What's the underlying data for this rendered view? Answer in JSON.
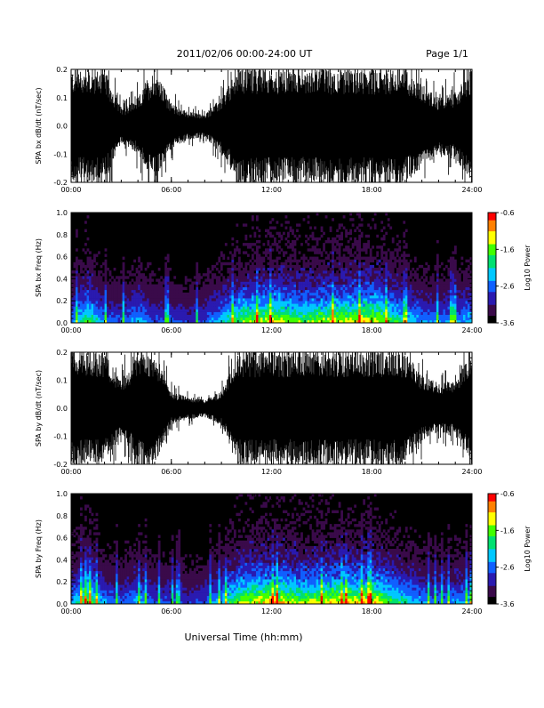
{
  "header": {
    "title": "2011/02/06  00:00-24:00 UT",
    "page": "Page 1/1"
  },
  "footer": {
    "xlabel": "Universal Time (hh:mm)"
  },
  "colors": {
    "trace": "#000000",
    "spectrogram_background": "#000000",
    "colormap": [
      "#000000",
      "#3a0a4a",
      "#2a1ab0",
      "#1060ff",
      "#00c8ff",
      "#00e070",
      "#40ff00",
      "#ffff00",
      "#ff8000",
      "#ff0000"
    ]
  },
  "chart_data": [
    {
      "type": "line",
      "panel": "bx-waveform",
      "ylabel": "SPA bx dB/dt (nT/sec)",
      "ylim": [
        -0.2,
        0.2
      ],
      "yticks": [
        "-0.2",
        "-0.1",
        "0.0",
        "0.1",
        "0.2"
      ],
      "xlim": [
        0,
        24
      ],
      "xticks": [
        "00:00",
        "06:00",
        "12:00",
        "18:00",
        "24:00"
      ],
      "x": [
        0,
        1,
        2,
        3,
        4,
        5,
        6,
        7,
        8,
        9,
        10,
        11,
        12,
        13,
        14,
        15,
        16,
        17,
        18,
        19,
        20,
        21,
        22,
        23,
        24
      ],
      "amplitude": [
        0.2,
        0.2,
        0.2,
        0.06,
        0.1,
        0.2,
        0.08,
        0.05,
        0.04,
        0.1,
        0.2,
        0.2,
        0.2,
        0.2,
        0.2,
        0.2,
        0.2,
        0.2,
        0.2,
        0.2,
        0.2,
        0.15,
        0.1,
        0.12,
        0.2
      ]
    },
    {
      "type": "heatmap",
      "panel": "bx-spectrogram",
      "ylabel": "SPA bx Freq (Hz)",
      "ylim": [
        0.0,
        1.0
      ],
      "yticks": [
        "0.0",
        "0.2",
        "0.4",
        "0.6",
        "0.8",
        "1.0"
      ],
      "xlim": [
        0,
        24
      ],
      "xticks": [
        "00:00",
        "06:00",
        "12:00",
        "18:00",
        "24:00"
      ],
      "colorbar": {
        "label": "Log10 Power",
        "range": [
          -3.6,
          -0.6
        ],
        "ticks": [
          "-0.6",
          "-1.6",
          "-2.6",
          "-3.6"
        ]
      },
      "x": [
        0,
        1,
        2,
        3,
        4,
        5,
        6,
        7,
        8,
        9,
        10,
        11,
        12,
        13,
        14,
        15,
        16,
        17,
        18,
        19,
        20,
        21,
        22,
        23,
        24
      ],
      "activity": [
        0.4,
        0.7,
        0.4,
        0.35,
        0.5,
        0.35,
        0.35,
        0.3,
        0.35,
        0.5,
        0.7,
        0.75,
        0.8,
        0.75,
        0.7,
        0.75,
        0.8,
        0.8,
        0.85,
        0.7,
        0.55,
        0.45,
        0.4,
        0.45,
        0.5
      ]
    },
    {
      "type": "line",
      "panel": "by-waveform",
      "ylabel": "SPA by dB/dt (nT/sec)",
      "ylim": [
        -0.2,
        0.2
      ],
      "yticks": [
        "-0.2",
        "-0.1",
        "0.0",
        "0.1",
        "0.2"
      ],
      "xlim": [
        0,
        24
      ],
      "xticks": [
        "00:00",
        "06:00",
        "12:00",
        "18:00",
        "24:00"
      ],
      "x": [
        0,
        1,
        2,
        3,
        4,
        5,
        6,
        7,
        8,
        9,
        10,
        11,
        12,
        13,
        14,
        15,
        16,
        17,
        18,
        19,
        20,
        21,
        22,
        23,
        24
      ],
      "amplitude": [
        0.2,
        0.2,
        0.2,
        0.1,
        0.2,
        0.2,
        0.06,
        0.04,
        0.03,
        0.06,
        0.2,
        0.2,
        0.2,
        0.2,
        0.2,
        0.2,
        0.2,
        0.2,
        0.2,
        0.2,
        0.2,
        0.12,
        0.09,
        0.1,
        0.2
      ]
    },
    {
      "type": "heatmap",
      "panel": "by-spectrogram",
      "ylabel": "SPA by Freq (Hz)",
      "ylim": [
        0.0,
        1.0
      ],
      "yticks": [
        "0.0",
        "0.2",
        "0.4",
        "0.6",
        "0.8",
        "1.0"
      ],
      "xlim": [
        0,
        24
      ],
      "xticks": [
        "00:00",
        "06:00",
        "12:00",
        "18:00",
        "24:00"
      ],
      "colorbar": {
        "label": "Log10 Power",
        "range": [
          -3.6,
          -0.6
        ],
        "ticks": [
          "-0.6",
          "-1.6",
          "-2.6",
          "-3.6"
        ]
      },
      "x": [
        0,
        1,
        2,
        3,
        4,
        5,
        6,
        7,
        8,
        9,
        10,
        11,
        12,
        13,
        14,
        15,
        16,
        17,
        18,
        19,
        20,
        21,
        22,
        23,
        24
      ],
      "activity": [
        0.45,
        0.75,
        0.45,
        0.35,
        0.5,
        0.35,
        0.35,
        0.3,
        0.35,
        0.5,
        0.75,
        0.8,
        0.85,
        0.8,
        0.75,
        0.8,
        0.85,
        0.8,
        0.85,
        0.7,
        0.55,
        0.45,
        0.4,
        0.45,
        0.5
      ]
    }
  ]
}
